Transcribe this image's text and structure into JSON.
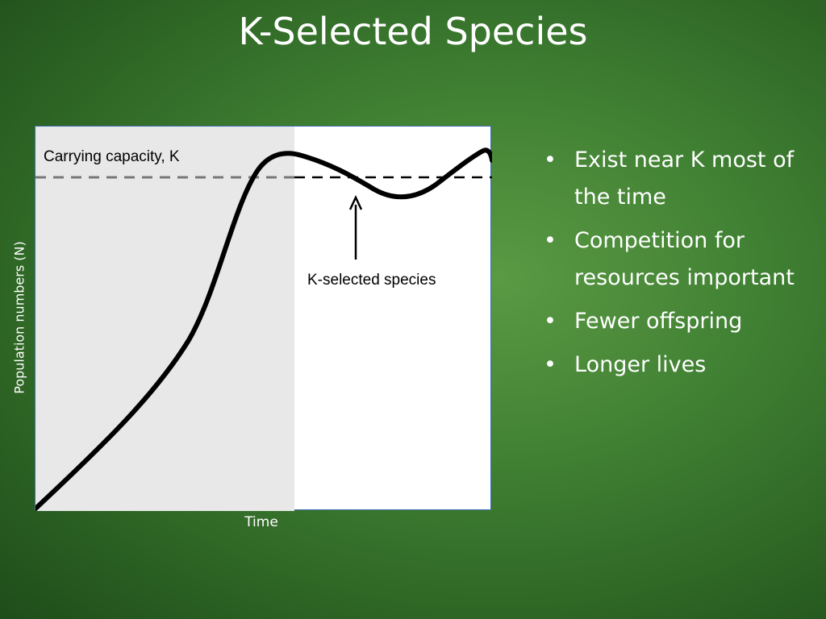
{
  "slide": {
    "title": "K-Selected Species",
    "bullets": [
      "Exist near K most of the time",
      "Competition for resources important",
      "Fewer offspring",
      "Longer lives"
    ]
  },
  "diagram": {
    "x_axis_label": "Time",
    "y_axis_label": "Population numbers (N)",
    "carrying_capacity_label": "Carrying capacity, K",
    "arrow_label": "K-selected species",
    "bullet_symbol": "•",
    "colors": {
      "background_green": "#3f7f32",
      "shaded_region": "#e8e8e8",
      "frame_border": "#3c6fb0",
      "curve": "#000000",
      "k_line_shaded": "#777777",
      "k_line": "#000000"
    }
  }
}
